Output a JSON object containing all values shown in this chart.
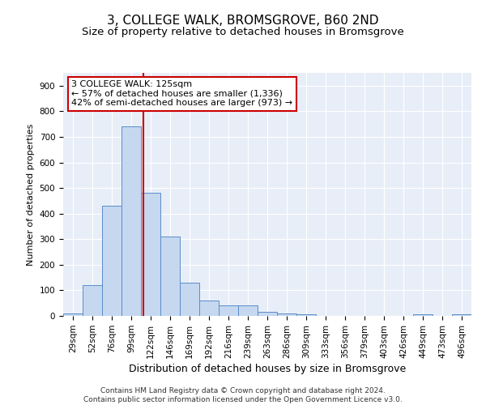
{
  "title": "3, COLLEGE WALK, BROMSGROVE, B60 2ND",
  "subtitle": "Size of property relative to detached houses in Bromsgrove",
  "xlabel": "Distribution of detached houses by size in Bromsgrove",
  "ylabel": "Number of detached properties",
  "bin_labels": [
    "29sqm",
    "52sqm",
    "76sqm",
    "99sqm",
    "122sqm",
    "146sqm",
    "169sqm",
    "192sqm",
    "216sqm",
    "239sqm",
    "263sqm",
    "286sqm",
    "309sqm",
    "333sqm",
    "356sqm",
    "379sqm",
    "403sqm",
    "426sqm",
    "449sqm",
    "473sqm",
    "496sqm"
  ],
  "bar_heights": [
    10,
    120,
    430,
    740,
    480,
    310,
    130,
    60,
    40,
    40,
    15,
    10,
    5,
    0,
    0,
    0,
    0,
    0,
    5,
    0,
    5
  ],
  "bar_color": "#c5d8f0",
  "bar_edge_color": "#5b8cc8",
  "bg_color": "#e8eef8",
  "grid_color": "#ffffff",
  "vline_color": "#cc0000",
  "vline_x": 3.625,
  "annotation_text": "3 COLLEGE WALK: 125sqm\n← 57% of detached houses are smaller (1,336)\n42% of semi-detached houses are larger (973) →",
  "annotation_box_color": "#ffffff",
  "annotation_box_edge": "#cc0000",
  "ylim": [
    0,
    950
  ],
  "yticks": [
    0,
    100,
    200,
    300,
    400,
    500,
    600,
    700,
    800,
    900
  ],
  "title_fontsize": 11,
  "subtitle_fontsize": 9.5,
  "xlabel_fontsize": 9,
  "ylabel_fontsize": 8,
  "tick_fontsize": 7.5,
  "annotation_fontsize": 8,
  "footer_fontsize": 6.5,
  "footer_line1": "Contains HM Land Registry data © Crown copyright and database right 2024.",
  "footer_line2": "Contains public sector information licensed under the Open Government Licence v3.0."
}
